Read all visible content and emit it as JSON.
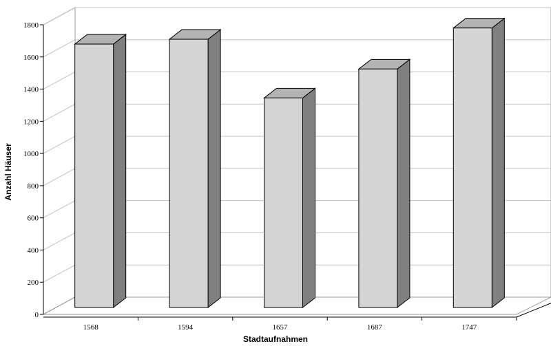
{
  "chart_data": {
    "type": "bar",
    "style": "3d-column",
    "title": "",
    "xlabel": "Stadtaufnahmen",
    "ylabel": "Anzahl Häuser",
    "categories": [
      "1568",
      "1594",
      "1657",
      "1687",
      "1747"
    ],
    "values": [
      1680,
      1710,
      1345,
      1525,
      1780
    ],
    "ylim": [
      0,
      1800
    ],
    "yticks": [
      0,
      200,
      400,
      600,
      800,
      1000,
      1200,
      1400,
      1600,
      1800
    ],
    "grid": true,
    "legend": "none",
    "colors": {
      "front": "#d4d4d4",
      "top": "#b3b3b3",
      "side": "#808080",
      "edge": "#000000",
      "grid": "#c0c0c0",
      "wall": "#ffffff"
    }
  }
}
